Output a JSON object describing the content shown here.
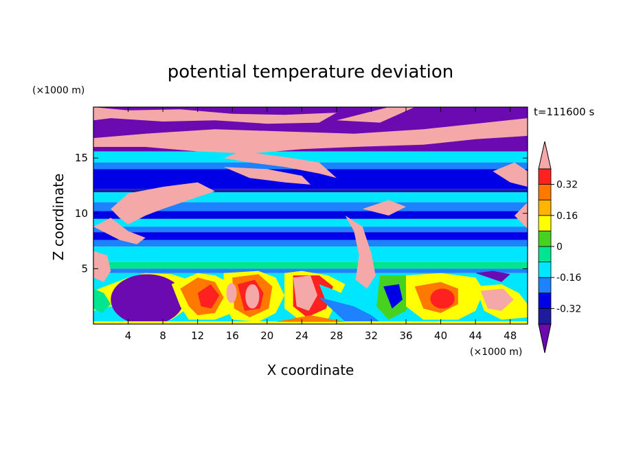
{
  "chart_data": {
    "type": "heatmap",
    "title": "potential temperature deviation",
    "xlabel": "X coordinate",
    "ylabel": "Z coordinate",
    "x_unit_label": "(×1000 m)",
    "y_unit_label": "(×1000 m)",
    "time_label": "t=111600 s",
    "xlim": [
      0,
      50
    ],
    "ylim": [
      0,
      19.6
    ],
    "x_ticks": [
      4,
      8,
      12,
      16,
      20,
      24,
      28,
      32,
      36,
      40,
      44,
      48
    ],
    "x_tick_labels": [
      "4",
      "8",
      "12",
      "16",
      "20",
      "24",
      "28",
      "32",
      "36",
      "40",
      "44",
      "48"
    ],
    "y_ticks": [
      5,
      10,
      15
    ],
    "y_tick_labels": [
      "5",
      "10",
      "15"
    ],
    "colorbar": {
      "orientation": "vertical",
      "placement": "right",
      "levels": [
        -0.4,
        -0.32,
        -0.24,
        -0.16,
        -0.08,
        0,
        0.08,
        0.16,
        0.24,
        0.32,
        0.4
      ],
      "labels": [
        "0.32",
        "0.16",
        "0",
        "-0.16",
        "-0.32"
      ],
      "label_values": [
        0.32,
        0.16,
        0,
        -0.16,
        -0.32
      ],
      "colors": [
        "#1c1c9c",
        "#0000e6",
        "#1e82ff",
        "#00e6ff",
        "#00e690",
        "#46d21e",
        "#ffff00",
        "#ffb400",
        "#ff7800",
        "#ff2020"
      ],
      "under_color": "#6a0ab0",
      "over_color": "#f5a8a8"
    },
    "layers": [
      {
        "z_range": [
          0,
          3
        ],
        "description_value": "mixed warm and cold cells"
      },
      {
        "z_range": [
          3,
          5
        ],
        "dominant_value": -0.12
      },
      {
        "z_range": [
          5,
          7
        ],
        "dominant_value": -0.04
      },
      {
        "z_range": [
          7,
          8
        ],
        "dominant_value": -0.2
      },
      {
        "z_range": [
          8,
          9
        ],
        "dominant_value": -0.36
      },
      {
        "z_range": [
          9,
          10
        ],
        "dominant_value": -0.2
      },
      {
        "z_range": [
          10,
          11
        ],
        "dominant_value": -0.36
      },
      {
        "z_range": [
          11,
          12
        ],
        "dominant_value": -0.2
      },
      {
        "z_range": [
          12,
          14
        ],
        "dominant_value": -0.36
      },
      {
        "z_range": [
          14,
          15.5
        ],
        "dominant_value": -0.2
      },
      {
        "z_range": [
          15.5,
          19.6
        ],
        "dominant_value": -0.45
      }
    ]
  }
}
